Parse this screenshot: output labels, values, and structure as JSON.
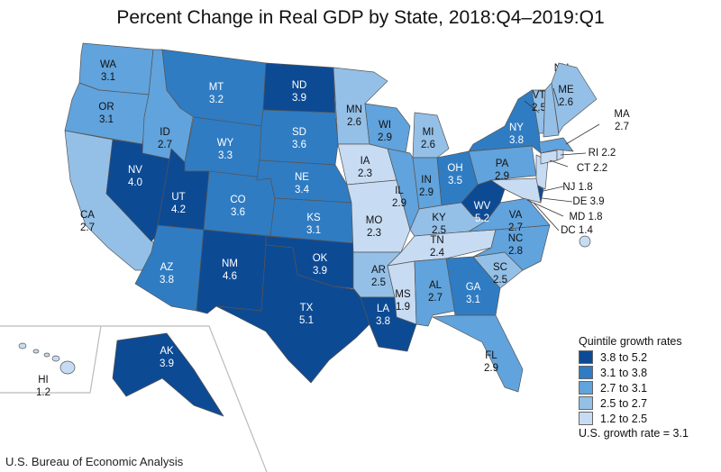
{
  "title": "Percent Change in Real GDP by State, 2018:Q4–2019:Q1",
  "source": "U.S. Bureau of Economic Analysis",
  "legend": {
    "title": "Quintile growth rates",
    "items": [
      {
        "label": "3.8 to 5.2",
        "color": "#0d4a94"
      },
      {
        "label": "3.1 to 3.8",
        "color": "#2f7cc3"
      },
      {
        "label": "2.7 to 3.1",
        "color": "#61a3dc"
      },
      {
        "label": "2.5 to 2.7",
        "color": "#94c0e8"
      },
      {
        "label": "1.2 to 2.5",
        "color": "#c7dcf3"
      }
    ],
    "us_rate": "U.S. growth rate = 3.1"
  },
  "states": [
    {
      "abbr": "WA",
      "value": "3.1",
      "q": 2
    },
    {
      "abbr": "OR",
      "value": "3.1",
      "q": 2
    },
    {
      "abbr": "CA",
      "value": "2.7",
      "q": 3
    },
    {
      "abbr": "NV",
      "value": "4.0",
      "q": 0
    },
    {
      "abbr": "ID",
      "value": "2.7",
      "q": 2
    },
    {
      "abbr": "MT",
      "value": "3.2",
      "q": 1
    },
    {
      "abbr": "WY",
      "value": "3.3",
      "q": 1
    },
    {
      "abbr": "UT",
      "value": "4.2",
      "q": 0
    },
    {
      "abbr": "CO",
      "value": "3.6",
      "q": 1
    },
    {
      "abbr": "AZ",
      "value": "3.8",
      "q": 1
    },
    {
      "abbr": "NM",
      "value": "4.6",
      "q": 0
    },
    {
      "abbr": "ND",
      "value": "3.9",
      "q": 0
    },
    {
      "abbr": "SD",
      "value": "3.6",
      "q": 1
    },
    {
      "abbr": "NE",
      "value": "3.4",
      "q": 1
    },
    {
      "abbr": "KS",
      "value": "3.1",
      "q": 1
    },
    {
      "abbr": "OK",
      "value": "3.9",
      "q": 0
    },
    {
      "abbr": "TX",
      "value": "5.1",
      "q": 0
    },
    {
      "abbr": "MN",
      "value": "2.6",
      "q": 3
    },
    {
      "abbr": "IA",
      "value": "2.3",
      "q": 4
    },
    {
      "abbr": "MO",
      "value": "2.3",
      "q": 4
    },
    {
      "abbr": "AR",
      "value": "2.5",
      "q": 3
    },
    {
      "abbr": "LA",
      "value": "3.8",
      "q": 0
    },
    {
      "abbr": "WI",
      "value": "2.9",
      "q": 2
    },
    {
      "abbr": "IL",
      "value": "2.9",
      "q": 2
    },
    {
      "abbr": "MI",
      "value": "2.6",
      "q": 3
    },
    {
      "abbr": "IN",
      "value": "2.9",
      "q": 2
    },
    {
      "abbr": "OH",
      "value": "3.5",
      "q": 1
    },
    {
      "abbr": "KY",
      "value": "2.5",
      "q": 3
    },
    {
      "abbr": "TN",
      "value": "2.4",
      "q": 4
    },
    {
      "abbr": "MS",
      "value": "1.9",
      "q": 4
    },
    {
      "abbr": "AL",
      "value": "2.7",
      "q": 2
    },
    {
      "abbr": "GA",
      "value": "3.1",
      "q": 1
    },
    {
      "abbr": "FL",
      "value": "2.9",
      "q": 2
    },
    {
      "abbr": "SC",
      "value": "2.5",
      "q": 3
    },
    {
      "abbr": "NC",
      "value": "2.8",
      "q": 2
    },
    {
      "abbr": "VA",
      "value": "2.7",
      "q": 2
    },
    {
      "abbr": "WV",
      "value": "5.2",
      "q": 0
    },
    {
      "abbr": "PA",
      "value": "2.9",
      "q": 2
    },
    {
      "abbr": "NY",
      "value": "3.8",
      "q": 1
    },
    {
      "abbr": "NJ",
      "value": "1.8",
      "q": 4
    },
    {
      "abbr": "DE",
      "value": "3.9",
      "q": 0
    },
    {
      "abbr": "MD",
      "value": "1.8",
      "q": 4
    },
    {
      "abbr": "DC",
      "value": "1.4",
      "q": 4
    },
    {
      "abbr": "CT",
      "value": "2.2",
      "q": 4
    },
    {
      "abbr": "RI",
      "value": "2.2",
      "q": 4
    },
    {
      "abbr": "MA",
      "value": "2.7",
      "q": 2
    },
    {
      "abbr": "VT",
      "value": "2.5",
      "q": 3
    },
    {
      "abbr": "NH",
      "value": "2.6",
      "q": 3
    },
    {
      "abbr": "ME",
      "value": "2.6",
      "q": 3
    },
    {
      "abbr": "AK",
      "value": "3.9",
      "q": 0
    },
    {
      "abbr": "HI",
      "value": "1.2",
      "q": 4
    }
  ]
}
